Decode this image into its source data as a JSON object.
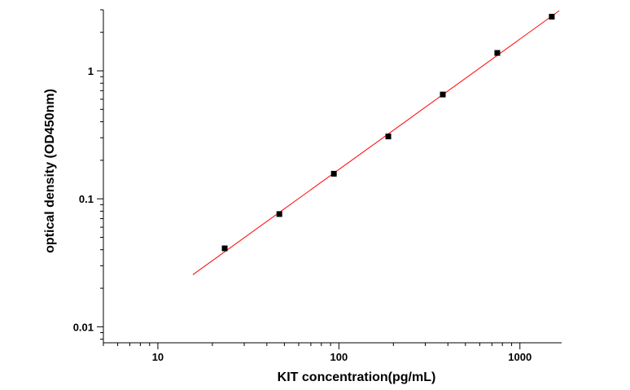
{
  "chart_data": {
    "type": "scatter",
    "title": "",
    "xlabel": "KIT  concentration(pg/mL)",
    "ylabel": "optical density (OD450nm)",
    "x_scale": "log",
    "y_scale": "log",
    "xlim": [
      5,
      1700
    ],
    "ylim": [
      0.0075,
      3.0
    ],
    "x_ticks": [
      10,
      100,
      1000
    ],
    "x_tick_labels": [
      "10",
      "100",
      "1000"
    ],
    "y_ticks": [
      0.01,
      0.1,
      1
    ],
    "y_tick_labels": [
      "0.01",
      "0.1",
      "1"
    ],
    "grid": false,
    "legend": "none",
    "series": [
      {
        "marker": "square",
        "color": "#000000",
        "x": [
          23.4,
          46.9,
          93.8,
          187.5,
          375,
          750,
          1500
        ],
        "y": [
          0.041,
          0.076,
          0.157,
          0.307,
          0.653,
          1.38,
          2.65
        ]
      }
    ],
    "fit_line": {
      "color": "#ff0000",
      "x": [
        15.6,
        1650
      ],
      "y": [
        0.0255,
        2.95
      ]
    }
  }
}
